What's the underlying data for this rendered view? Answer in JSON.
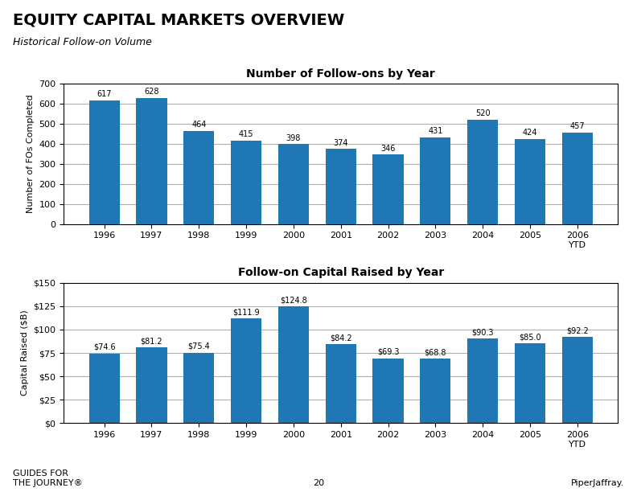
{
  "title": "EQUITY CAPITAL MARKETS OVERVIEW",
  "subtitle": "Historical Follow-on Volume",
  "annotations": [
    "20",
    "PiperJaffray.",
    "GUIDES FOR\nTHE JOURNEY®"
  ],
  "chart_data": [
    {
      "type": "bar",
      "title": "Number of Follow-ons by Year",
      "categories": [
        "1996",
        "1997",
        "1998",
        "1999",
        "2000",
        "2001",
        "2002",
        "2003",
        "2004",
        "2005",
        "2006\nYTD"
      ],
      "values": [
        617,
        628,
        464,
        415,
        398,
        374,
        346,
        431,
        520,
        424,
        457
      ],
      "y_label": "Number of FOs Completed",
      "ylim": [
        0,
        700
      ],
      "yticks": [
        0,
        100,
        200,
        300,
        400,
        500,
        600,
        700
      ],
      "grid": true,
      "data_labels": true
    },
    {
      "type": "bar",
      "title": "Follow-on Capital Raised by Year",
      "categories": [
        "1996",
        "1997",
        "1998",
        "1999",
        "2000",
        "2001",
        "2002",
        "2003",
        "2004",
        "2005",
        "2006\nYTD"
      ],
      "values": [
        74.6,
        81.2,
        75.4,
        111.9,
        124.8,
        84.2,
        69.3,
        68.8,
        90.3,
        85.0,
        92.2
      ],
      "value_labels": [
        "$74.6",
        "$81.2",
        "$75.4",
        "$111.9",
        "$124.8",
        "$84.2",
        "$69.3",
        "$68.8",
        "$90.3",
        "$85.0",
        "$92.2"
      ],
      "y_label": "Capital Raised ($B)",
      "ylim": [
        0,
        150
      ],
      "yticks": [
        {
          "value": 0,
          "label": "$0"
        },
        {
          "value": 25,
          "label": "$25"
        },
        {
          "value": 50,
          "label": "$50"
        },
        {
          "value": 75,
          "label": "$75"
        },
        {
          "value": 100,
          "label": "$100"
        },
        {
          "value": 125,
          "label": "$125"
        },
        {
          "value": 150,
          "label": "$150"
        }
      ],
      "grid": true,
      "data_labels": true
    }
  ]
}
